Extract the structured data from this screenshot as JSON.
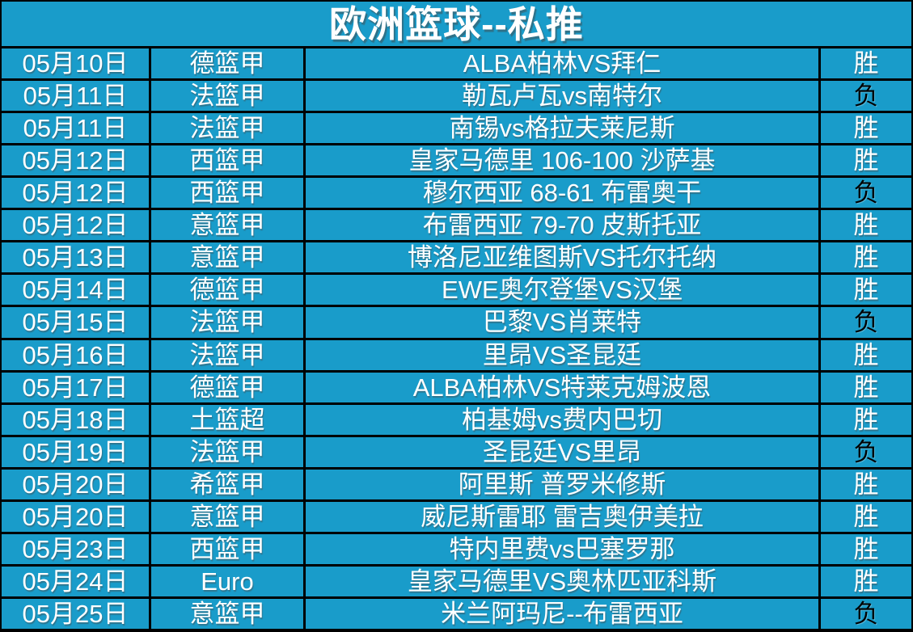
{
  "title": "欧洲篮球--私推",
  "colors": {
    "background": "#199CCA",
    "grid_border": "#000000",
    "win_text": "#FFFFFF",
    "loss_text": "#000000"
  },
  "results_legend": {
    "win": "胜",
    "loss": "负"
  },
  "rows": [
    {
      "date": "05月10日",
      "league": "德篮甲",
      "match": "ALBA柏林VS拜仁",
      "result": "胜"
    },
    {
      "date": "05月11日",
      "league": "法篮甲",
      "match": "勒瓦卢瓦vs南特尔",
      "result": "负"
    },
    {
      "date": "05月11日",
      "league": "法篮甲",
      "match": "南锡vs格拉夫莱尼斯",
      "result": "胜"
    },
    {
      "date": "05月12日",
      "league": "西篮甲",
      "match": "皇家马德里 106-100 沙萨基",
      "result": "胜"
    },
    {
      "date": "05月12日",
      "league": "西篮甲",
      "match": "穆尔西亚 68-61 布雷奥干",
      "result": "负"
    },
    {
      "date": "05月12日",
      "league": "意篮甲",
      "match": "布雷西亚 79-70 皮斯托亚",
      "result": "胜"
    },
    {
      "date": "05月13日",
      "league": "意篮甲",
      "match": "博洛尼亚维图斯VS托尔托纳",
      "result": "胜"
    },
    {
      "date": "05月14日",
      "league": "德篮甲",
      "match": "EWE奥尔登堡VS汉堡",
      "result": "胜"
    },
    {
      "date": "05月15日",
      "league": "法篮甲",
      "match": "巴黎VS肖莱特",
      "result": "负"
    },
    {
      "date": "05月16日",
      "league": "法篮甲",
      "match": "里昂VS圣昆廷",
      "result": "胜"
    },
    {
      "date": "05月17日",
      "league": "德篮甲",
      "match": "ALBA柏林VS特莱克姆波恩",
      "result": "胜"
    },
    {
      "date": "05月18日",
      "league": "土篮超",
      "match": "柏基姆vs费内巴切",
      "result": "胜"
    },
    {
      "date": "05月19日",
      "league": "法篮甲",
      "match": "圣昆廷VS里昂",
      "result": "负"
    },
    {
      "date": "05月20日",
      "league": "希篮甲",
      "match": "阿里斯 普罗米修斯",
      "result": "胜"
    },
    {
      "date": "05月20日",
      "league": "意篮甲",
      "match": "威尼斯雷耶 雷吉奥伊美拉",
      "result": "胜"
    },
    {
      "date": "05月23日",
      "league": "西篮甲",
      "match": "特内里费vs巴塞罗那",
      "result": "胜"
    },
    {
      "date": "05月24日",
      "league": "Euro",
      "match": "皇家马德里VS奥林匹亚科斯",
      "result": "胜"
    },
    {
      "date": "05月25日",
      "league": "意篮甲",
      "match": "米兰阿玛尼--布雷西亚",
      "result": "负"
    }
  ]
}
